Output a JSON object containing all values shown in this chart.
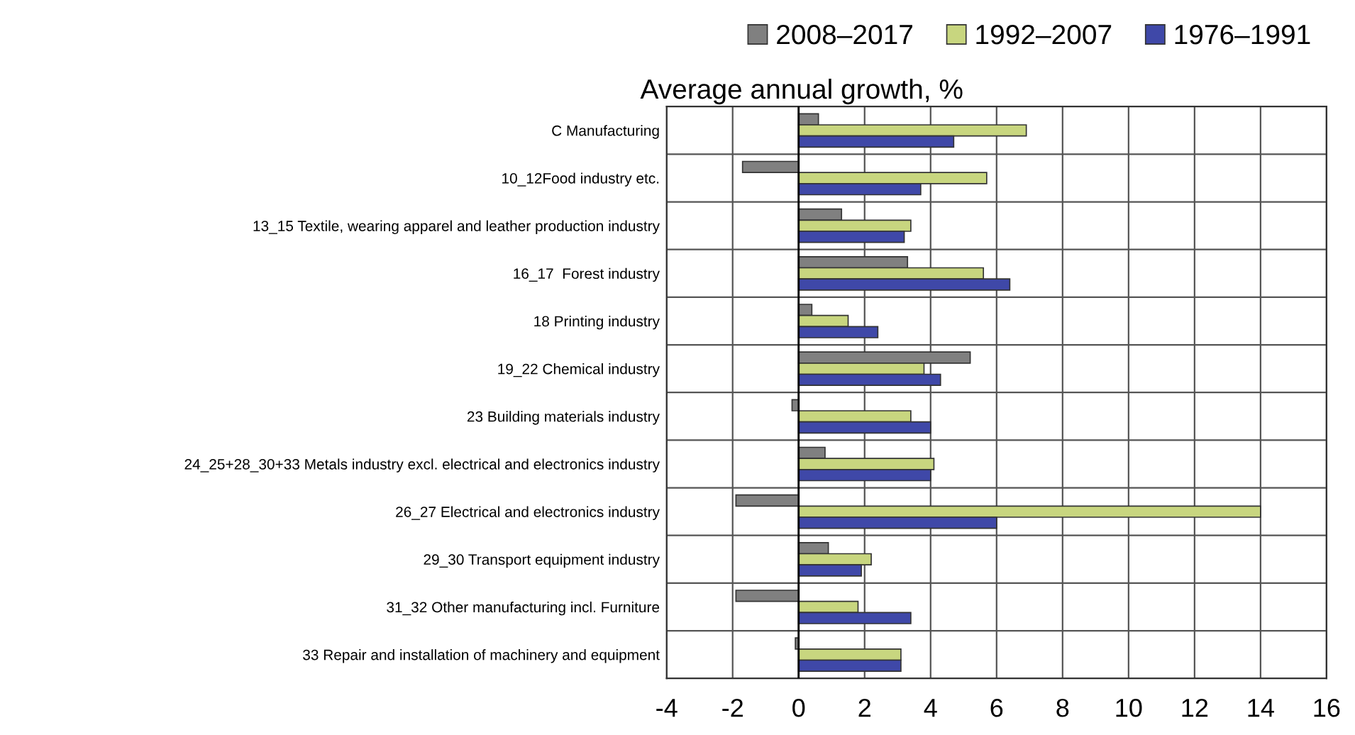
{
  "chart_data": {
    "type": "bar",
    "orientation": "horizontal",
    "title": "Average annual growth, %",
    "categories": [
      "C Manufacturing",
      "10_12Food industry etc.",
      "13_15 Textile, wearing apparel and leather production industry",
      "16_17  Forest industry",
      "18 Printing industry",
      "19_22 Chemical industry",
      "23 Building materials industry",
      "24_25+28_30+33 Metals industry excl. electrical and electronics industry",
      "26_27 Electrical and electronics industry",
      "29_30 Transport equipment industry",
      "31_32 Other manufacturing incl. Furniture",
      "33 Repair and installation of machinery and equipment"
    ],
    "series": [
      {
        "name": "2008–2017",
        "color": "#808080",
        "values": [
          0.6,
          -1.7,
          1.3,
          3.3,
          0.4,
          5.2,
          -0.2,
          0.8,
          -1.9,
          0.9,
          -1.9,
          -0.1
        ]
      },
      {
        "name": "1992–2007",
        "color": "#c8d67f",
        "values": [
          6.9,
          5.7,
          3.4,
          5.6,
          1.5,
          3.8,
          3.4,
          4.1,
          14.0,
          2.2,
          1.8,
          3.1
        ]
      },
      {
        "name": "1976–1991",
        "color": "#3f48a8",
        "values": [
          4.7,
          3.7,
          3.2,
          6.4,
          2.4,
          4.3,
          4.0,
          4.0,
          6.0,
          1.9,
          3.4,
          3.1
        ]
      }
    ],
    "xlim": [
      -4,
      16
    ],
    "xticks": [
      -4,
      -2,
      0,
      2,
      4,
      6,
      8,
      10,
      12,
      14,
      16
    ],
    "grid": true,
    "legend": "top"
  }
}
